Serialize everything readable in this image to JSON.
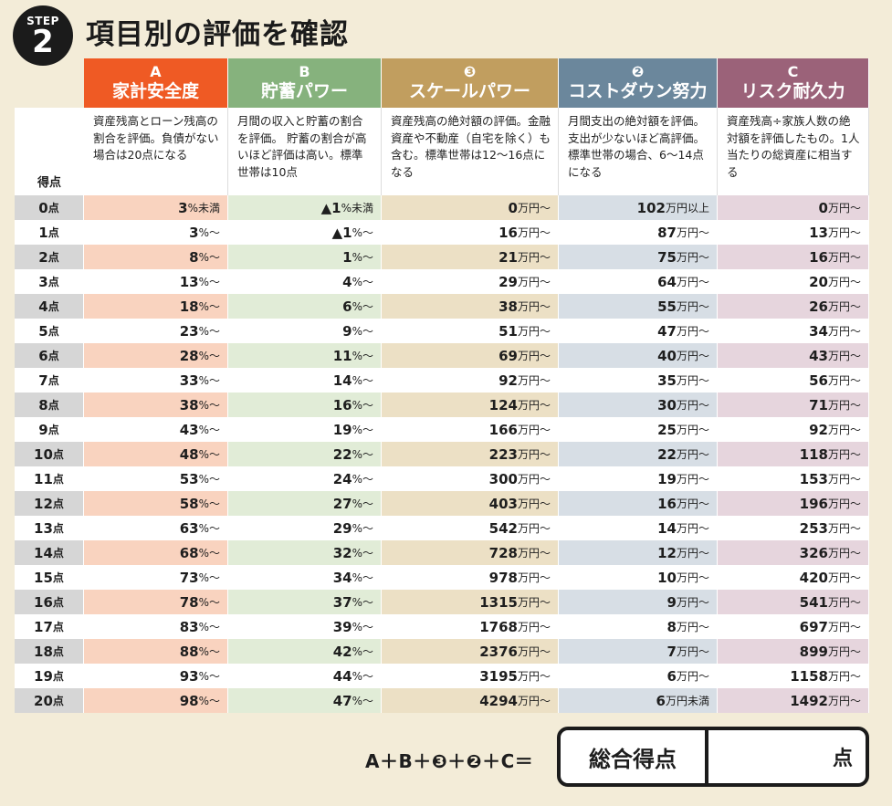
{
  "step": {
    "word": "STEP",
    "number": "2"
  },
  "title": "項目別の評価を確認",
  "score_header": "得点",
  "score_unit": "点",
  "columns": [
    {
      "letter": "A",
      "name": "家計安全度",
      "color": "#ef5a24",
      "even_bg": "#f9d3bf",
      "description": "資産残高とローン残高の割合を評価。負債がない場合は20点になる"
    },
    {
      "letter": "B",
      "name": "貯蓄パワー",
      "color": "#86b27d",
      "even_bg": "#e1ecd7",
      "description": "月間の収入と貯蓄の割合を評価。 貯蓄の割合が高いほど評価は高い。標準世帯は10点"
    },
    {
      "letter": "❸",
      "name": "スケールパワー",
      "color": "#c19e5f",
      "even_bg": "#ece0c5",
      "description": "資産残高の絶対額の評価。金融資産や不動産（自宅を除く）も含む。標準世帯は12〜16点になる"
    },
    {
      "letter": "❷",
      "name": "コストダウン努力",
      "color": "#6b879c",
      "even_bg": "#d7dee5",
      "description": "月間支出の絶対額を評価。支出が少ないほど高評価。標準世帯の場合、6〜14点になる"
    },
    {
      "letter": "C",
      "name": "リスク耐久力",
      "color": "#9b6279",
      "even_bg": "#e6d5dd",
      "description": "資産残高÷家族人数の絶対額を評価したもの。1人当たりの総資産に相当する"
    }
  ],
  "rows": [
    {
      "score": "0",
      "cells": [
        {
          "num": "3",
          "unit": "%未満"
        },
        {
          "num": "▲1",
          "unit": "%未満"
        },
        {
          "num": "0",
          "unit": "万円〜"
        },
        {
          "num": "102",
          "unit": "万円以上"
        },
        {
          "num": "0",
          "unit": "万円〜"
        }
      ]
    },
    {
      "score": "1",
      "cells": [
        {
          "num": "3",
          "unit": "%〜"
        },
        {
          "num": "▲1",
          "unit": "%〜"
        },
        {
          "num": "16",
          "unit": "万円〜"
        },
        {
          "num": "87",
          "unit": "万円〜"
        },
        {
          "num": "13",
          "unit": "万円〜"
        }
      ]
    },
    {
      "score": "2",
      "cells": [
        {
          "num": "8",
          "unit": "%〜"
        },
        {
          "num": "1",
          "unit": "%〜"
        },
        {
          "num": "21",
          "unit": "万円〜"
        },
        {
          "num": "75",
          "unit": "万円〜"
        },
        {
          "num": "16",
          "unit": "万円〜"
        }
      ]
    },
    {
      "score": "3",
      "cells": [
        {
          "num": "13",
          "unit": "%〜"
        },
        {
          "num": "4",
          "unit": "%〜"
        },
        {
          "num": "29",
          "unit": "万円〜"
        },
        {
          "num": "64",
          "unit": "万円〜"
        },
        {
          "num": "20",
          "unit": "万円〜"
        }
      ]
    },
    {
      "score": "4",
      "cells": [
        {
          "num": "18",
          "unit": "%〜"
        },
        {
          "num": "6",
          "unit": "%〜"
        },
        {
          "num": "38",
          "unit": "万円〜"
        },
        {
          "num": "55",
          "unit": "万円〜"
        },
        {
          "num": "26",
          "unit": "万円〜"
        }
      ]
    },
    {
      "score": "5",
      "cells": [
        {
          "num": "23",
          "unit": "%〜"
        },
        {
          "num": "9",
          "unit": "%〜"
        },
        {
          "num": "51",
          "unit": "万円〜"
        },
        {
          "num": "47",
          "unit": "万円〜"
        },
        {
          "num": "34",
          "unit": "万円〜"
        }
      ]
    },
    {
      "score": "6",
      "cells": [
        {
          "num": "28",
          "unit": "%〜"
        },
        {
          "num": "11",
          "unit": "%〜"
        },
        {
          "num": "69",
          "unit": "万円〜"
        },
        {
          "num": "40",
          "unit": "万円〜"
        },
        {
          "num": "43",
          "unit": "万円〜"
        }
      ]
    },
    {
      "score": "7",
      "cells": [
        {
          "num": "33",
          "unit": "%〜"
        },
        {
          "num": "14",
          "unit": "%〜"
        },
        {
          "num": "92",
          "unit": "万円〜"
        },
        {
          "num": "35",
          "unit": "万円〜"
        },
        {
          "num": "56",
          "unit": "万円〜"
        }
      ]
    },
    {
      "score": "8",
      "cells": [
        {
          "num": "38",
          "unit": "%〜"
        },
        {
          "num": "16",
          "unit": "%〜"
        },
        {
          "num": "124",
          "unit": "万円〜"
        },
        {
          "num": "30",
          "unit": "万円〜"
        },
        {
          "num": "71",
          "unit": "万円〜"
        }
      ]
    },
    {
      "score": "9",
      "cells": [
        {
          "num": "43",
          "unit": "%〜"
        },
        {
          "num": "19",
          "unit": "%〜"
        },
        {
          "num": "166",
          "unit": "万円〜"
        },
        {
          "num": "25",
          "unit": "万円〜"
        },
        {
          "num": "92",
          "unit": "万円〜"
        }
      ]
    },
    {
      "score": "10",
      "cells": [
        {
          "num": "48",
          "unit": "%〜"
        },
        {
          "num": "22",
          "unit": "%〜"
        },
        {
          "num": "223",
          "unit": "万円〜"
        },
        {
          "num": "22",
          "unit": "万円〜"
        },
        {
          "num": "118",
          "unit": "万円〜"
        }
      ]
    },
    {
      "score": "11",
      "cells": [
        {
          "num": "53",
          "unit": "%〜"
        },
        {
          "num": "24",
          "unit": "%〜"
        },
        {
          "num": "300",
          "unit": "万円〜"
        },
        {
          "num": "19",
          "unit": "万円〜"
        },
        {
          "num": "153",
          "unit": "万円〜"
        }
      ]
    },
    {
      "score": "12",
      "cells": [
        {
          "num": "58",
          "unit": "%〜"
        },
        {
          "num": "27",
          "unit": "%〜"
        },
        {
          "num": "403",
          "unit": "万円〜"
        },
        {
          "num": "16",
          "unit": "万円〜"
        },
        {
          "num": "196",
          "unit": "万円〜"
        }
      ]
    },
    {
      "score": "13",
      "cells": [
        {
          "num": "63",
          "unit": "%〜"
        },
        {
          "num": "29",
          "unit": "%〜"
        },
        {
          "num": "542",
          "unit": "万円〜"
        },
        {
          "num": "14",
          "unit": "万円〜"
        },
        {
          "num": "253",
          "unit": "万円〜"
        }
      ]
    },
    {
      "score": "14",
      "cells": [
        {
          "num": "68",
          "unit": "%〜"
        },
        {
          "num": "32",
          "unit": "%〜"
        },
        {
          "num": "728",
          "unit": "万円〜"
        },
        {
          "num": "12",
          "unit": "万円〜"
        },
        {
          "num": "326",
          "unit": "万円〜"
        }
      ]
    },
    {
      "score": "15",
      "cells": [
        {
          "num": "73",
          "unit": "%〜"
        },
        {
          "num": "34",
          "unit": "%〜"
        },
        {
          "num": "978",
          "unit": "万円〜"
        },
        {
          "num": "10",
          "unit": "万円〜"
        },
        {
          "num": "420",
          "unit": "万円〜"
        }
      ]
    },
    {
      "score": "16",
      "cells": [
        {
          "num": "78",
          "unit": "%〜"
        },
        {
          "num": "37",
          "unit": "%〜"
        },
        {
          "num": "1315",
          "unit": "万円〜"
        },
        {
          "num": "9",
          "unit": "万円〜"
        },
        {
          "num": "541",
          "unit": "万円〜"
        }
      ]
    },
    {
      "score": "17",
      "cells": [
        {
          "num": "83",
          "unit": "%〜"
        },
        {
          "num": "39",
          "unit": "%〜"
        },
        {
          "num": "1768",
          "unit": "万円〜"
        },
        {
          "num": "8",
          "unit": "万円〜"
        },
        {
          "num": "697",
          "unit": "万円〜"
        }
      ]
    },
    {
      "score": "18",
      "cells": [
        {
          "num": "88",
          "unit": "%〜"
        },
        {
          "num": "42",
          "unit": "%〜"
        },
        {
          "num": "2376",
          "unit": "万円〜"
        },
        {
          "num": "7",
          "unit": "万円〜"
        },
        {
          "num": "899",
          "unit": "万円〜"
        }
      ]
    },
    {
      "score": "19",
      "cells": [
        {
          "num": "93",
          "unit": "%〜"
        },
        {
          "num": "44",
          "unit": "%〜"
        },
        {
          "num": "3195",
          "unit": "万円〜"
        },
        {
          "num": "6",
          "unit": "万円〜"
        },
        {
          "num": "1158",
          "unit": "万円〜"
        }
      ]
    },
    {
      "score": "20",
      "cells": [
        {
          "num": "98",
          "unit": "%〜"
        },
        {
          "num": "47",
          "unit": "%〜"
        },
        {
          "num": "4294",
          "unit": "万円〜"
        },
        {
          "num": "6",
          "unit": "万円未満"
        },
        {
          "num": "1492",
          "unit": "万円〜"
        }
      ]
    }
  ],
  "formula": "A＋B＋❸＋❷＋C＝",
  "total": {
    "label": "総合得点",
    "unit": "点"
  }
}
